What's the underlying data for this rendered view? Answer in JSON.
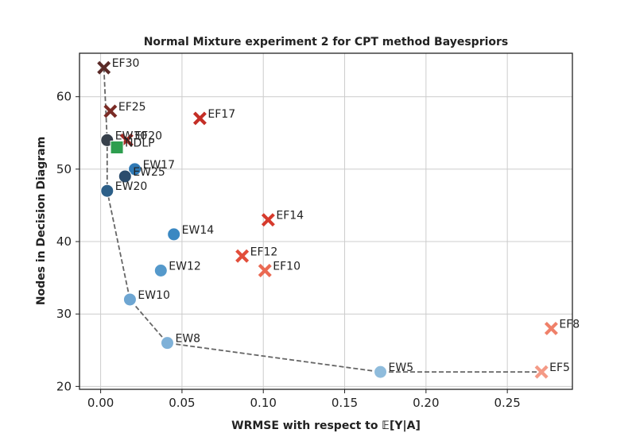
{
  "chart_data": {
    "type": "scatter",
    "title": "Normal Mixture experiment 2 for CPT method Bayespriors",
    "xlabel": "WRMSE with respect to 𝔼[Y|A]",
    "ylabel": "Nodes in Decision Diagram",
    "xlim": [
      -0.013,
      0.29
    ],
    "ylim": [
      19.6,
      66
    ],
    "xticks": [
      0.0,
      0.05,
      0.1,
      0.15,
      0.2,
      0.25
    ],
    "xtick_labels": [
      "0.00",
      "0.05",
      "0.10",
      "0.15",
      "0.20",
      "0.25"
    ],
    "yticks": [
      20,
      30,
      40,
      50,
      60
    ],
    "ytick_labels": [
      "20",
      "30",
      "40",
      "50",
      "60"
    ],
    "grid": true,
    "legend": "none",
    "series": [
      {
        "marker": "circle",
        "points": [
          {
            "label": "EW5",
            "x": 0.172,
            "y": 22,
            "color": "#8fbcdc"
          },
          {
            "label": "EW8",
            "x": 0.041,
            "y": 26,
            "color": "#7fb1d8"
          },
          {
            "label": "EW10",
            "x": 0.018,
            "y": 32,
            "color": "#6ea6d2"
          },
          {
            "label": "EW12",
            "x": 0.037,
            "y": 36,
            "color": "#5599cb"
          },
          {
            "label": "EW14",
            "x": 0.045,
            "y": 41,
            "color": "#3a88c2"
          },
          {
            "label": "EW17",
            "x": 0.021,
            "y": 50,
            "color": "#2f79b5"
          },
          {
            "label": "EW20",
            "x": 0.004,
            "y": 47,
            "color": "#2c5f88"
          },
          {
            "label": "EW25",
            "x": 0.015,
            "y": 49,
            "color": "#2b4c6d"
          },
          {
            "label": "EW30",
            "x": 0.004,
            "y": 54,
            "color": "#37404b"
          }
        ]
      },
      {
        "marker": "x",
        "points": [
          {
            "label": "EF5",
            "x": 0.271,
            "y": 22,
            "color": "#f49a86"
          },
          {
            "label": "EF8",
            "x": 0.277,
            "y": 28,
            "color": "#ef8069"
          },
          {
            "label": "EF10",
            "x": 0.101,
            "y": 36,
            "color": "#ea6952"
          },
          {
            "label": "EF12",
            "x": 0.087,
            "y": 38,
            "color": "#e24e3b"
          },
          {
            "label": "EF14",
            "x": 0.103,
            "y": 43,
            "color": "#d63a2c"
          },
          {
            "label": "EF17",
            "x": 0.061,
            "y": 57,
            "color": "#c42e26"
          },
          {
            "label": "EF20",
            "x": 0.016,
            "y": 54,
            "color": "#a42b25"
          },
          {
            "label": "EF25",
            "x": 0.006,
            "y": 58,
            "color": "#7a2b25"
          },
          {
            "label": "EF30",
            "x": 0.002,
            "y": 64,
            "color": "#5a2a27"
          }
        ]
      },
      {
        "marker": "square",
        "points": [
          {
            "label": "NDLP",
            "x": 0.01,
            "y": 53,
            "color": "#2e9e4f"
          }
        ]
      }
    ],
    "frontier": {
      "style": "dashed",
      "color": "#666666",
      "points": [
        {
          "x": 0.002,
          "y": 64
        },
        {
          "x": 0.004,
          "y": 54
        },
        {
          "x": 0.004,
          "y": 47
        },
        {
          "x": 0.018,
          "y": 32
        },
        {
          "x": 0.041,
          "y": 26
        },
        {
          "x": 0.172,
          "y": 22
        },
        {
          "x": 0.271,
          "y": 22
        }
      ]
    }
  }
}
